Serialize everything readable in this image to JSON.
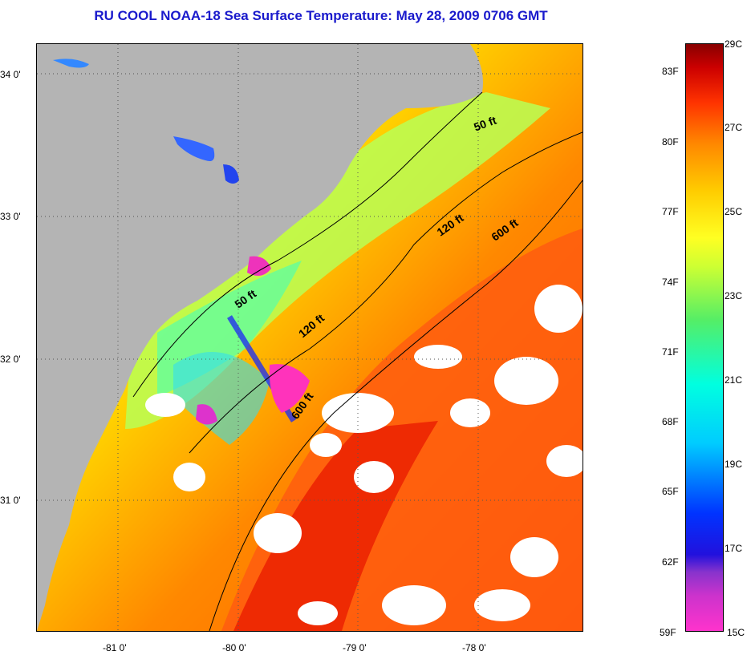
{
  "title": "RU COOL  NOAA-18  Sea Surface Temperature:  May 28, 2009 0706 GMT",
  "lat_labels": [
    "34 0'",
    "33 0'",
    "32 0'",
    "31 0'"
  ],
  "lon_labels": [
    "-81 0'",
    "-80 0'",
    "-79 0'",
    "-78 0'"
  ],
  "contour_labels": [
    "50 ft",
    "120 ft",
    "600 ft",
    "50 ft",
    "120 ft",
    "600 ft"
  ],
  "colorbar": {
    "fahrenheit": [
      "83F",
      "80F",
      "77F",
      "74F",
      "71F",
      "68F",
      "65F",
      "62F",
      "59F"
    ],
    "celsius": [
      "29C",
      "27C",
      "25C",
      "23C",
      "21C",
      "19C",
      "17C",
      "15C"
    ],
    "range_c": [
      15,
      29
    ]
  },
  "colors": {
    "land": "#b4b4b4",
    "title": "#1a1acc",
    "cloud": "#ffffff"
  }
}
